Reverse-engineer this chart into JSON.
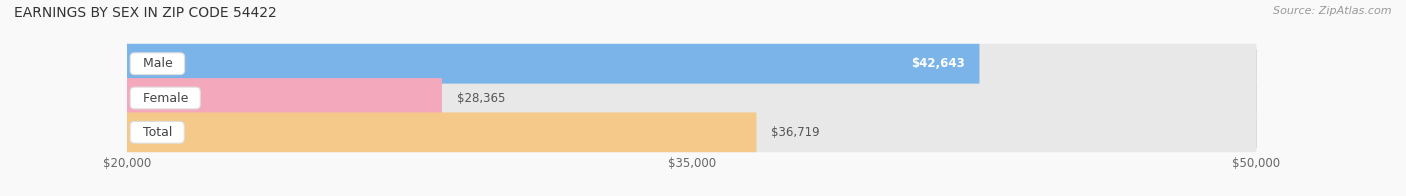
{
  "title": "EARNINGS BY SEX IN ZIP CODE 54422",
  "source": "Source: ZipAtlas.com",
  "categories": [
    "Male",
    "Female",
    "Total"
  ],
  "values": [
    42643,
    28365,
    36719
  ],
  "bar_colors": [
    "#7ab4e8",
    "#f4a8bc",
    "#f5c98a"
  ],
  "label_value_texts": [
    "$42,643",
    "$28,365",
    "$36,719"
  ],
  "value_label_colors": [
    "#ffffff",
    "#555555",
    "#555555"
  ],
  "value_label_ha": [
    "right",
    "left",
    "left"
  ],
  "xmin": 20000,
  "xmax": 50000,
  "xticks": [
    20000,
    35000,
    50000
  ],
  "xtick_labels": [
    "$20,000",
    "$35,000",
    "$50,000"
  ],
  "bar_height": 0.58,
  "track_color": "#e8e8e8",
  "background_color": "#f9f9f9",
  "label_bg_color": "#ffffff",
  "label_text_color": "#444444",
  "title_fontsize": 10,
  "source_fontsize": 8,
  "label_fontsize": 9,
  "value_fontsize": 8.5,
  "tick_fontsize": 8.5
}
